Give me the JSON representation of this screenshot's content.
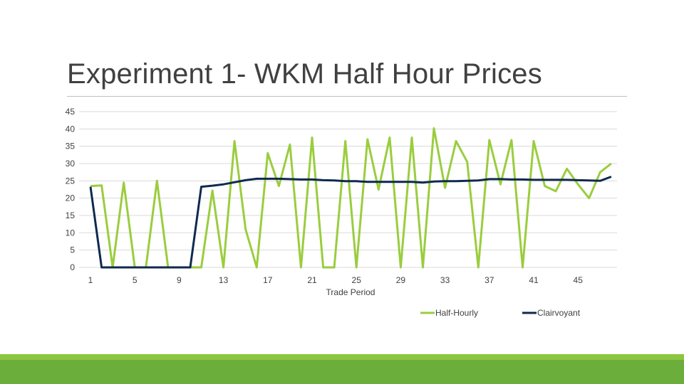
{
  "slide": {
    "title": "Experiment 1- WKM Half Hour Prices"
  },
  "colors": {
    "half_hourly": "#9ACD3E",
    "clairvoyant": "#0F2A4F",
    "gridline": "#d9d9d9",
    "title_rule": "#bfbfbf",
    "footer": "#6bae3c"
  },
  "chart_data": {
    "type": "line",
    "title": "",
    "xlabel": "Trade Period",
    "ylabel": "",
    "ylim": [
      0,
      45
    ],
    "yticks": [
      0,
      5,
      10,
      15,
      20,
      25,
      30,
      35,
      40,
      45
    ],
    "x": [
      1,
      2,
      3,
      4,
      5,
      6,
      7,
      8,
      9,
      10,
      11,
      12,
      13,
      14,
      15,
      16,
      17,
      18,
      19,
      20,
      21,
      22,
      23,
      24,
      25,
      26,
      27,
      28,
      29,
      30,
      31,
      32,
      33,
      34,
      35,
      36,
      37,
      38,
      39,
      40,
      41,
      42,
      43,
      44,
      45,
      46,
      47,
      48
    ],
    "xticks": [
      "1",
      "5",
      "9",
      "13",
      "17",
      "21",
      "25",
      "29",
      "33",
      "37",
      "41",
      "45"
    ],
    "xtick_positions": [
      1,
      5,
      9,
      13,
      17,
      21,
      25,
      29,
      33,
      37,
      41,
      45
    ],
    "grid": true,
    "legend": "bottom",
    "series": [
      {
        "name": "Half-Hourly",
        "color": "#9ACD3E",
        "values": [
          23.5,
          23.7,
          0,
          24.5,
          0,
          0,
          25,
          0,
          0,
          0,
          0,
          22.2,
          0,
          36.5,
          11,
          0,
          33,
          23.5,
          35.5,
          0,
          37.5,
          0,
          0,
          36.5,
          0,
          37,
          22.5,
          37.5,
          0,
          37.5,
          0,
          40.2,
          23,
          36.5,
          30.5,
          0,
          36.8,
          24,
          36.8,
          0,
          36.5,
          23.5,
          22,
          28.5,
          24,
          20,
          27.5,
          30
        ]
      },
      {
        "name": "Clairvoyant",
        "color": "#0F2A4F",
        "values": [
          23.3,
          0,
          0,
          0,
          0,
          0,
          0,
          0,
          0,
          0,
          23.3,
          23.6,
          24,
          24.6,
          25.2,
          25.6,
          25.6,
          25.6,
          25.5,
          25.4,
          25.4,
          25.2,
          25.1,
          24.9,
          24.9,
          24.7,
          24.7,
          24.7,
          24.7,
          24.7,
          24.5,
          24.8,
          24.9,
          24.9,
          25,
          25.1,
          25.5,
          25.5,
          25.4,
          25.4,
          25.3,
          25.3,
          25.3,
          25.3,
          25.2,
          25.1,
          25.0,
          26.2
        ]
      }
    ]
  }
}
